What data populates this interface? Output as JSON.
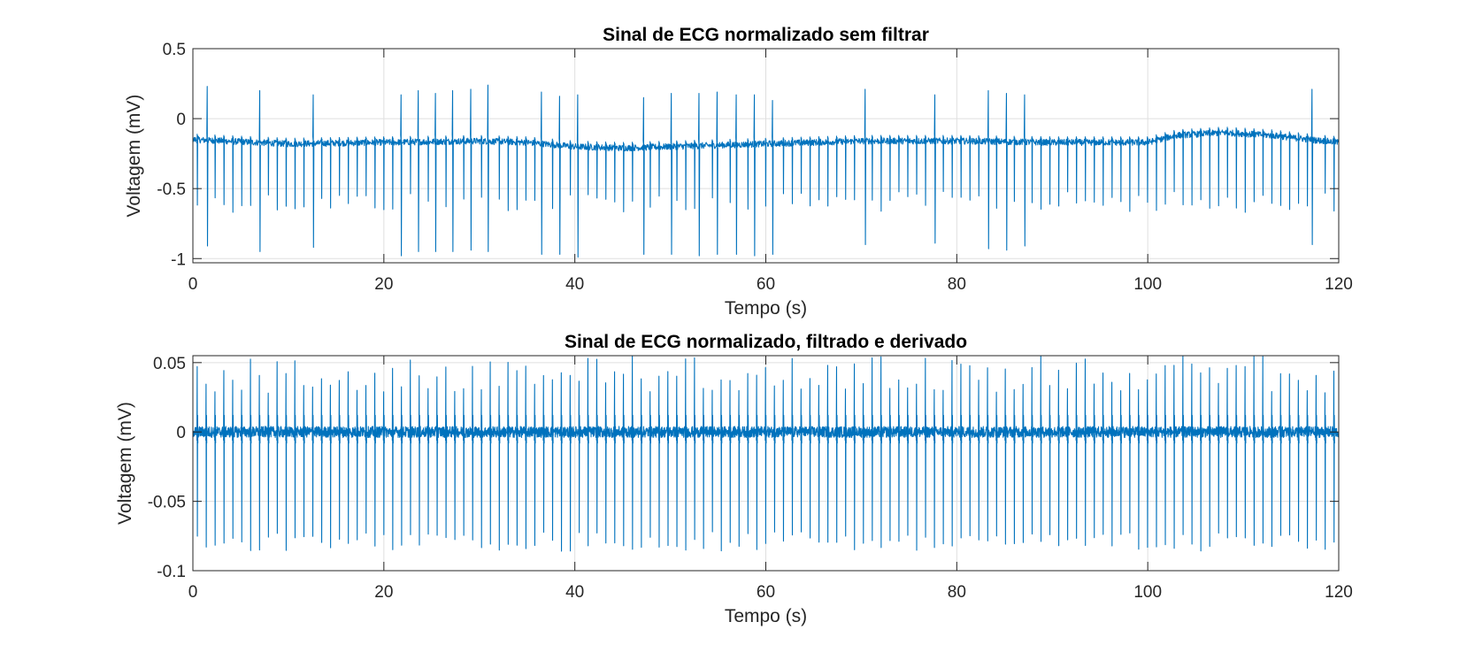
{
  "figure": {
    "background": "#ffffff",
    "series_color": "#0072BD"
  },
  "chart_data": [
    {
      "type": "line",
      "title": "Sinal de ECG normalizado sem filtrar",
      "xlabel": "Tempo (s)",
      "ylabel": "Voltagem (mV)",
      "xlim": [
        0,
        120
      ],
      "ylim": [
        -1.03,
        0.5
      ],
      "x_ticks": [
        0,
        20,
        40,
        60,
        80,
        100,
        120
      ],
      "x_tick_labels": [
        "0",
        "20",
        "40",
        "60",
        "80",
        "100",
        "120"
      ],
      "y_ticks": [
        -1,
        -0.5,
        0,
        0.5
      ],
      "y_tick_labels": [
        "-1",
        "-0.5",
        "0",
        "0.5"
      ],
      "grid": true,
      "series": [
        {
          "color": "#0072BD",
          "description_baseline": [
            [
              0,
              -0.15
            ],
            [
              10,
              -0.18
            ],
            [
              20,
              -0.17
            ],
            [
              30,
              -0.16
            ],
            [
              35,
              -0.17
            ],
            [
              40,
              -0.2
            ],
            [
              45,
              -0.21
            ],
            [
              50,
              -0.2
            ],
            [
              60,
              -0.18
            ],
            [
              70,
              -0.16
            ],
            [
              80,
              -0.16
            ],
            [
              90,
              -0.17
            ],
            [
              100,
              -0.17
            ],
            [
              103,
              -0.12
            ],
            [
              108,
              -0.1
            ],
            [
              113,
              -0.12
            ],
            [
              117,
              -0.15
            ],
            [
              120,
              -0.17
            ]
          ],
          "beat_times": [
            1.5,
            7.0,
            12.6,
            21.8,
            23.6,
            25.4,
            27.2,
            29.1,
            30.9,
            36.5,
            38.4,
            40.3,
            47.2,
            50.1,
            53.0,
            54.9,
            56.9,
            58.8,
            60.7,
            70.4,
            77.7,
            83.3,
            85.2,
            87.1,
            117.2
          ],
          "beat_peaks": [
            0.23,
            0.2,
            0.17,
            0.17,
            0.2,
            0.18,
            0.2,
            0.21,
            0.24,
            0.19,
            0.16,
            0.17,
            0.15,
            0.18,
            0.18,
            0.19,
            0.17,
            0.17,
            0.13,
            0.21,
            0.17,
            0.2,
            0.18,
            0.17,
            0.21
          ],
          "beat_troughs": [
            -0.91,
            -0.95,
            -0.92,
            -0.98,
            -0.95,
            -0.95,
            -0.95,
            -0.94,
            -0.95,
            -0.97,
            -0.97,
            -0.99,
            -0.97,
            -0.97,
            -0.98,
            -0.97,
            -0.97,
            -0.98,
            -0.97,
            -0.9,
            -0.89,
            -0.93,
            -0.94,
            -0.91,
            -0.9
          ],
          "small_beat_interval": 0.93,
          "small_beat_trough_range": [
            -0.52,
            -0.67
          ]
        }
      ]
    },
    {
      "type": "line",
      "title": "Sinal de ECG normalizado, filtrado e derivado",
      "xlabel": "Tempo (s)",
      "ylabel": "Voltagem (mV)",
      "xlim": [
        0,
        120
      ],
      "ylim": [
        -0.1,
        0.055
      ],
      "x_ticks": [
        0,
        20,
        40,
        60,
        80,
        100,
        120
      ],
      "x_tick_labels": [
        "0",
        "20",
        "40",
        "60",
        "80",
        "100",
        "120"
      ],
      "y_ticks": [
        -0.1,
        -0.05,
        0,
        0.05
      ],
      "y_tick_labels": [
        "-0.1",
        "-0.05",
        "0",
        "0.05"
      ],
      "grid": true,
      "series": [
        {
          "color": "#0072BD",
          "beat_interval": 0.93,
          "first_beat": 0.45,
          "beat_peak_range": [
            0.028,
            0.055
          ],
          "beat_trough_range": [
            -0.072,
            -0.086
          ],
          "noise_amplitude": 0.004
        }
      ]
    }
  ]
}
